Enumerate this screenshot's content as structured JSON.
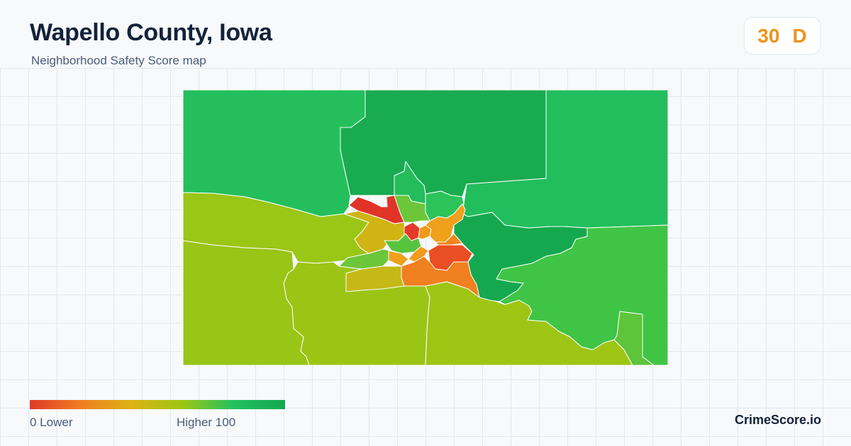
{
  "header": {
    "title": "Wapello County, Iowa",
    "subtitle": "Neighborhood Safety Score map"
  },
  "score": {
    "value": "30",
    "grade": "D",
    "color": "#f0921a"
  },
  "legend": {
    "low_label": "0  Lower",
    "high_label": "Higher  100",
    "colors": [
      "#e03a2a",
      "#f07e22",
      "#dcb314",
      "#9cc614",
      "#22c160",
      "#14a74f"
    ]
  },
  "brand": "CrimeScore.io",
  "map": {
    "border_color": "#ffffff",
    "regions": [
      {
        "name": "north-central",
        "color": "#19ab4f"
      },
      {
        "name": "northwest",
        "color": "#24bf5c"
      },
      {
        "name": "northeast",
        "color": "#22be5d"
      },
      {
        "name": "north-tract-a",
        "color": "#23bd5c"
      },
      {
        "name": "north-tract-b",
        "color": "#2cc35a"
      },
      {
        "name": "west",
        "color": "#9ac616"
      },
      {
        "name": "southwest",
        "color": "#98c516"
      },
      {
        "name": "south-central",
        "color": "#9bc515"
      },
      {
        "name": "south",
        "color": "#9ec514"
      },
      {
        "name": "east-dark",
        "color": "#16a84e"
      },
      {
        "name": "east",
        "color": "#40c446"
      },
      {
        "name": "southeast",
        "color": "#40c446"
      },
      {
        "name": "southeast-small",
        "color": "#5ec43a"
      },
      {
        "name": "city-red-northwest",
        "color": "#e03428"
      },
      {
        "name": "city-red-center",
        "color": "#e5392a"
      },
      {
        "name": "city-green-center",
        "color": "#58c43e"
      },
      {
        "name": "city-yellow-west",
        "color": "#cfb414"
      },
      {
        "name": "city-yellow-southwest",
        "color": "#c6b816"
      },
      {
        "name": "city-light-green",
        "color": "#6cc63a"
      },
      {
        "name": "city-orange-north",
        "color": "#f0a01a"
      },
      {
        "name": "city-orange-east",
        "color": "#f0861c"
      },
      {
        "name": "city-red-east",
        "color": "#ea4e24"
      },
      {
        "name": "city-orange-south",
        "color": "#f08020"
      },
      {
        "name": "city-small-orange",
        "color": "#f29a1c"
      }
    ]
  }
}
